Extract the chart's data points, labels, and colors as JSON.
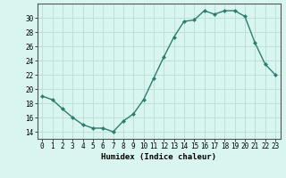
{
  "x": [
    0,
    1,
    2,
    3,
    4,
    5,
    6,
    7,
    8,
    9,
    10,
    11,
    12,
    13,
    14,
    15,
    16,
    17,
    18,
    19,
    20,
    21,
    22,
    23
  ],
  "y": [
    19.0,
    18.5,
    17.2,
    16.0,
    15.0,
    14.5,
    14.5,
    14.0,
    15.5,
    16.5,
    18.5,
    21.5,
    24.5,
    27.3,
    29.5,
    29.7,
    31.0,
    30.5,
    31.0,
    31.0,
    30.2,
    26.5,
    23.5,
    22.0
  ],
  "line_color": "#2e7d6e",
  "marker": "D",
  "marker_size": 2.0,
  "background_color": "#d8f5f0",
  "grid_color": "#b8ddd8",
  "xlabel": "Humidex (Indice chaleur)",
  "ylabel": "",
  "xlim": [
    -0.5,
    23.5
  ],
  "ylim": [
    13,
    32
  ],
  "yticks": [
    14,
    16,
    18,
    20,
    22,
    24,
    26,
    28,
    30
  ],
  "xticks": [
    0,
    1,
    2,
    3,
    4,
    5,
    6,
    7,
    8,
    9,
    10,
    11,
    12,
    13,
    14,
    15,
    16,
    17,
    18,
    19,
    20,
    21,
    22,
    23
  ],
  "tick_fontsize": 5.5,
  "xlabel_fontsize": 6.5,
  "linewidth": 1.0
}
